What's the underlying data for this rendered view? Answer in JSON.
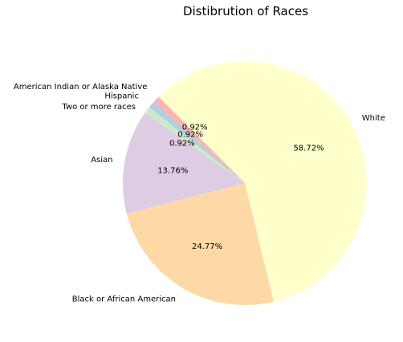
{
  "chart_data": {
    "type": "pie",
    "title": "Distibrution of Races",
    "categories": [
      "White",
      "Black or African American",
      "Asian",
      "Two or more races",
      "Hispanic",
      "American Indian or Alaska Native"
    ],
    "values": [
      58.72,
      24.77,
      13.76,
      0.92,
      0.92,
      0.92
    ],
    "value_labels": [
      "58.72%",
      "24.77%",
      "13.76%",
      "0.92%",
      "0.92%",
      "0.92%"
    ],
    "colors": [
      "#ffffcc",
      "#fed9a6",
      "#decbe4",
      "#ccebc5",
      "#b3cde3",
      "#fbb4ae"
    ],
    "start_angle_deg": 135,
    "direction": "clockwise",
    "legend": "none"
  }
}
